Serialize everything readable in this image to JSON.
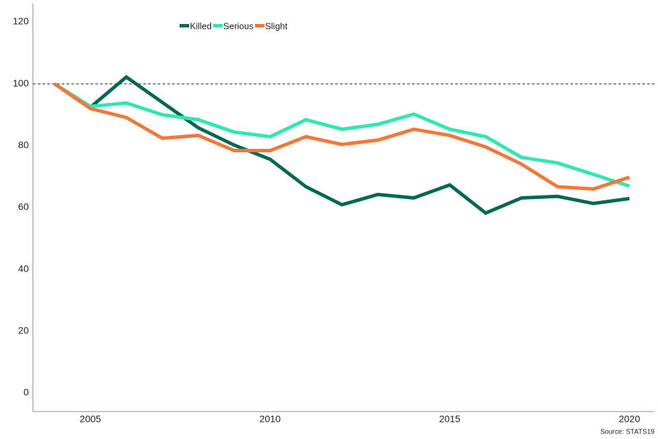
{
  "chart_data": {
    "type": "line",
    "x": [
      2004,
      2005,
      2006,
      2007,
      2008,
      2009,
      2010,
      2011,
      2012,
      2013,
      2014,
      2015,
      2016,
      2017,
      2018,
      2019,
      2020
    ],
    "series": [
      {
        "name": "Killed",
        "color": "#006853",
        "values": [
          100,
          92.4,
          102.2,
          94,
          85.8,
          80.2,
          75.6,
          66.7,
          60.9,
          64.2,
          63.1,
          67.3,
          58.2,
          63.1,
          63.6,
          61.3,
          62.9
        ]
      },
      {
        "name": "Serious",
        "color": "#2de8b0",
        "values": [
          100,
          92.7,
          93.8,
          90,
          88.4,
          84.4,
          82.9,
          88.4,
          85.3,
          86.9,
          90.2,
          85.3,
          82.9,
          76.2,
          74.4,
          70.7,
          66.9
        ]
      },
      {
        "name": "Slight",
        "color": "#f47738",
        "values": [
          100,
          92,
          89.1,
          82.4,
          83.3,
          78.4,
          78.4,
          82.9,
          80.4,
          81.8,
          85.3,
          83.3,
          79.6,
          74,
          66.7,
          66,
          69.8
        ]
      }
    ],
    "xlim": [
      2003.4,
      2020.7
    ],
    "xticks": [
      2005,
      2010,
      2015,
      2020
    ],
    "ylim": [
      -6,
      126
    ],
    "yticks": [
      0,
      20,
      40,
      60,
      80,
      100,
      120
    ],
    "reference_line": 100,
    "grid": false,
    "legend": "top",
    "source": "Source: STATS19"
  }
}
